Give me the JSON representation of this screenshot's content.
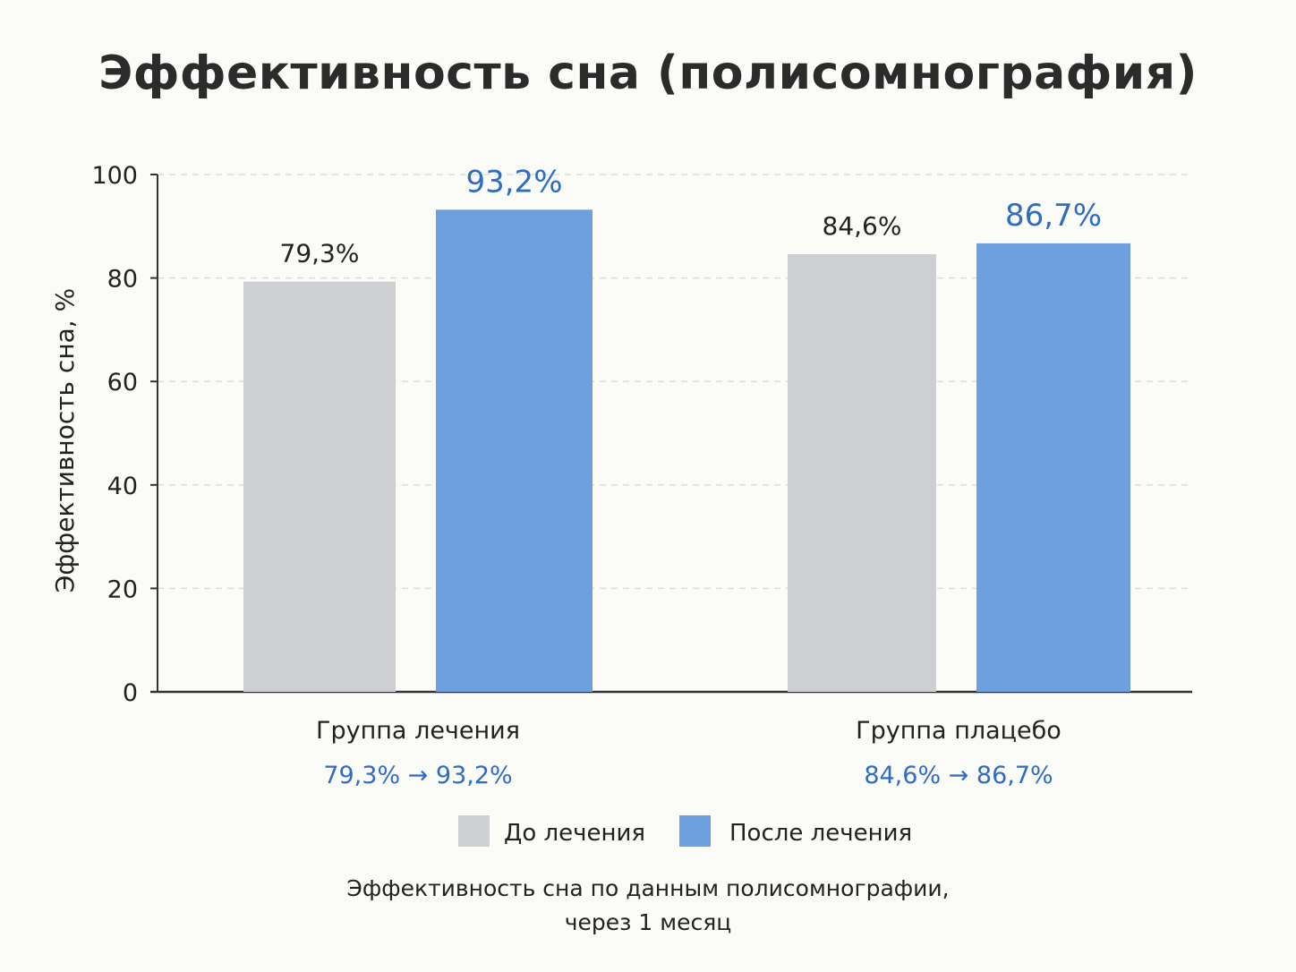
{
  "chart_data": {
    "type": "bar",
    "title": "Эффективность сна (полисомнография)",
    "ylabel": "Эффективность сна, %",
    "xlabel": "",
    "ylim": [
      0,
      100
    ],
    "yticks": [
      0,
      20,
      40,
      60,
      80,
      100
    ],
    "grid": true,
    "categories": [
      "Группа лечения",
      "Группа плацебо"
    ],
    "category_changes": [
      "79,3% → 93,2%",
      "84,6% → 86,7%"
    ],
    "series": [
      {
        "name": "До лечения",
        "color": "#cdcfd2",
        "values": [
          79.3,
          84.6
        ],
        "labels": [
          "79,3%",
          "84,6%"
        ]
      },
      {
        "name": "После лечения",
        "color": "#6ea0e0",
        "values": [
          93.2,
          86.7
        ],
        "labels": [
          "93,2%",
          "86,7%"
        ]
      }
    ],
    "legend_position": "bottom",
    "footnote_lines": [
      "Эффективность сна по данным полисомнографии,",
      "через 1 месяц"
    ]
  }
}
